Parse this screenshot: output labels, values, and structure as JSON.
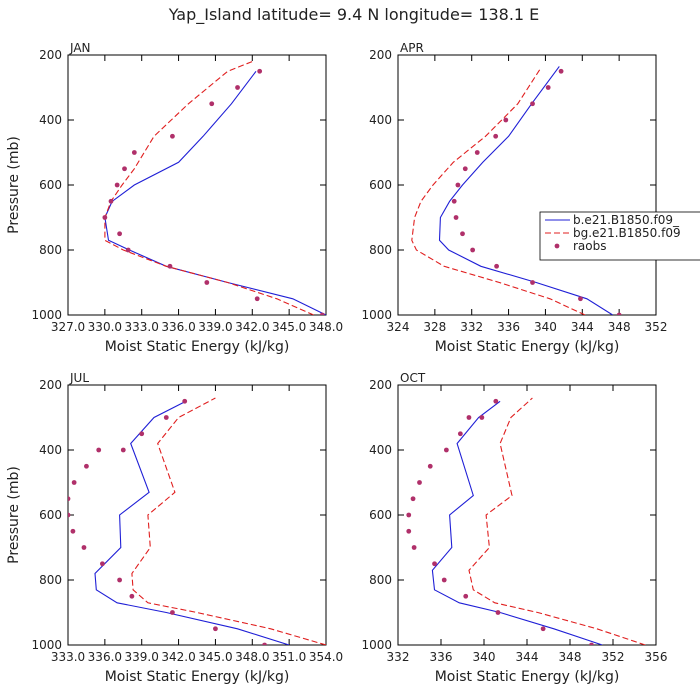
{
  "title": "Yap_Island  latitude= 9.4 N longitude= 138.1 E",
  "colors": {
    "model1": "#1f1fd6",
    "model2": "#e01f1f",
    "raobs": "#b0306a",
    "axis": "#000000"
  },
  "legend": {
    "entries": [
      "b.e21.B1850.f09_",
      "bg.e21.B1850.f09",
      "raobs"
    ]
  },
  "chart_data": [
    {
      "type": "line",
      "panel": "JAN",
      "xlabel": "Moist Static Energy (kJ/kg)",
      "ylabel": "Pressure (mb)",
      "xlim": [
        327.0,
        348.0
      ],
      "ylim": [
        1000,
        200
      ],
      "xticks": [
        327.0,
        330.0,
        333.0,
        336.0,
        339.0,
        342.0,
        345.0,
        348.0
      ],
      "xtick_labels": [
        "327.0",
        "330.0",
        "333.0",
        "336.0",
        "339.0",
        "342.0",
        "345.0",
        "348.0"
      ],
      "yticks": [
        200,
        400,
        600,
        800,
        1000
      ],
      "ytick_labels": [
        "200",
        "400",
        "600",
        "800",
        "1000"
      ],
      "series": [
        {
          "name": "b.e21.B1850.f09_",
          "style": "solid",
          "x": [
            348.0,
            345.3,
            340.0,
            335.0,
            332.0,
            330.3,
            330.0,
            330.6,
            332.4,
            336.0,
            338.0,
            340.3,
            342.3
          ],
          "y": [
            1000,
            950,
            900,
            850,
            800,
            770,
            700,
            650,
            600,
            530,
            450,
            350,
            250
          ]
        },
        {
          "name": "bg.e21.B1850.f09",
          "style": "dashed",
          "x": [
            347.0,
            344.0,
            340.0,
            335.0,
            331.5,
            330.0,
            330.0,
            330.5,
            331.4,
            332.4,
            334.0,
            336.8,
            340.0,
            342.0
          ],
          "y": [
            1000,
            950,
            900,
            850,
            800,
            770,
            700,
            650,
            600,
            550,
            450,
            350,
            250,
            220
          ]
        },
        {
          "name": "raobs",
          "style": "markers",
          "x": [
            347.7,
            342.4,
            338.3,
            335.3,
            331.9,
            331.2,
            330.0,
            330.5,
            331.0,
            331.6,
            332.4,
            335.5,
            338.7,
            340.8,
            342.6
          ],
          "y": [
            1000,
            950,
            900,
            850,
            800,
            750,
            700,
            650,
            600,
            550,
            500,
            450,
            350,
            300,
            250
          ]
        }
      ]
    },
    {
      "type": "line",
      "panel": "APR",
      "xlabel": "Moist Static Energy (kJ/kg)",
      "ylabel": "",
      "xlim": [
        324,
        352
      ],
      "ylim": [
        1000,
        200
      ],
      "xticks": [
        324,
        328,
        332,
        336,
        340,
        344,
        348,
        352
      ],
      "xtick_labels": [
        "324",
        "328",
        "332",
        "336",
        "340",
        "344",
        "348",
        "352"
      ],
      "yticks": [
        200,
        400,
        600,
        800,
        1000
      ],
      "ytick_labels": [
        "200",
        "400",
        "600",
        "800",
        "1000"
      ],
      "series": [
        {
          "name": "b.e21.B1850.f09_",
          "style": "solid",
          "x": [
            347.3,
            344.5,
            339.0,
            333.0,
            329.5,
            328.5,
            328.6,
            329.6,
            331.0,
            333.2,
            336.0,
            338.5,
            341.5
          ],
          "y": [
            1000,
            950,
            900,
            850,
            800,
            770,
            700,
            650,
            600,
            530,
            450,
            350,
            235
          ]
        },
        {
          "name": "bg.e21.B1850.f09",
          "style": "dashed",
          "x": [
            344.3,
            340.5,
            335.0,
            329.0,
            326.0,
            325.5,
            325.8,
            326.5,
            327.8,
            330.0,
            333.5,
            337.0,
            339.5
          ],
          "y": [
            1000,
            950,
            900,
            850,
            800,
            770,
            700,
            650,
            600,
            530,
            450,
            350,
            240
          ]
        },
        {
          "name": "raobs",
          "style": "markers",
          "x": [
            348.0,
            343.8,
            338.6,
            334.7,
            332.1,
            331.0,
            330.3,
            330.1,
            330.5,
            331.3,
            332.6,
            334.6,
            335.7,
            338.6,
            340.3,
            341.7
          ],
          "y": [
            1000,
            950,
            900,
            850,
            800,
            750,
            700,
            650,
            600,
            550,
            500,
            450,
            400,
            350,
            300,
            250
          ]
        }
      ]
    },
    {
      "type": "line",
      "panel": "JUL",
      "xlabel": "Moist Static Energy (kJ/kg)",
      "ylabel": "Pressure (mb)",
      "xlim": [
        333.0,
        354.0
      ],
      "ylim": [
        1000,
        200
      ],
      "xticks": [
        333.0,
        336.0,
        339.0,
        342.0,
        345.0,
        348.0,
        351.0,
        354.0
      ],
      "xtick_labels": [
        "333.0",
        "336.0",
        "339.0",
        "342.0",
        "345.0",
        "348.0",
        "351.0",
        "354.0"
      ],
      "yticks": [
        200,
        400,
        600,
        800,
        1000
      ],
      "ytick_labels": [
        "200",
        "400",
        "600",
        "800",
        "1000"
      ],
      "series": [
        {
          "name": "b.e21.B1850.f09_",
          "style": "solid",
          "x": [
            351.0,
            346.8,
            341.0,
            337.0,
            335.3,
            335.2,
            337.3,
            337.2,
            339.6,
            338.1,
            340.0,
            342.6
          ],
          "y": [
            1000,
            950,
            900,
            870,
            830,
            780,
            700,
            600,
            530,
            380,
            300,
            250
          ]
        },
        {
          "name": "bg.e21.B1850.f09",
          "style": "dashed",
          "x": [
            354.0,
            349.5,
            343.5,
            339.5,
            338.3,
            338.2,
            339.7,
            339.5,
            341.7,
            340.3,
            342.0,
            345.0
          ],
          "y": [
            1000,
            950,
            900,
            870,
            830,
            780,
            700,
            600,
            530,
            380,
            300,
            240
          ]
        },
        {
          "name": "raobs",
          "style": "markers",
          "x": [
            349.0,
            345.0,
            341.5,
            338.2,
            337.2,
            335.8,
            334.3,
            333.4,
            333.0,
            333.0,
            333.5,
            334.5,
            335.5,
            337.5,
            339.0,
            341.0,
            342.5
          ],
          "y": [
            1000,
            950,
            900,
            850,
            800,
            750,
            700,
            650,
            600,
            550,
            500,
            450,
            400,
            400,
            350,
            300,
            250
          ]
        }
      ]
    },
    {
      "type": "line",
      "panel": "OCT",
      "xlabel": "Moist Static Energy (kJ/kg)",
      "ylabel": "",
      "xlim": [
        332,
        356
      ],
      "ylim": [
        1000,
        200
      ],
      "xticks": [
        332,
        336,
        340,
        344,
        348,
        352,
        356
      ],
      "xtick_labels": [
        "332",
        "336",
        "340",
        "344",
        "348",
        "352",
        "356"
      ],
      "yticks": [
        200,
        400,
        600,
        800,
        1000
      ],
      "ytick_labels": [
        "200",
        "400",
        "600",
        "800",
        "1000"
      ],
      "series": [
        {
          "name": "b.e21.B1850.f09_",
          "style": "solid",
          "x": [
            351.0,
            346.5,
            341.5,
            337.7,
            335.4,
            335.2,
            337.0,
            336.8,
            339.0,
            337.5,
            339.5,
            341.5
          ],
          "y": [
            1000,
            950,
            900,
            870,
            830,
            770,
            700,
            600,
            540,
            380,
            300,
            250
          ]
        },
        {
          "name": "bg.e21.B1850.f09",
          "style": "dashed",
          "x": [
            355.0,
            350.5,
            345.0,
            341.0,
            339.0,
            338.6,
            340.5,
            340.2,
            342.6,
            341.5,
            342.5,
            344.5
          ],
          "y": [
            1000,
            950,
            900,
            870,
            830,
            770,
            700,
            600,
            540,
            380,
            300,
            240
          ]
        },
        {
          "name": "raobs",
          "style": "markers",
          "x": [
            350.0,
            345.5,
            341.3,
            338.3,
            336.3,
            335.4,
            333.5,
            333.0,
            333.0,
            333.4,
            334.0,
            335.0,
            336.5,
            337.8,
            338.6,
            339.8,
            341.1
          ],
          "y": [
            1000,
            950,
            900,
            850,
            800,
            750,
            700,
            650,
            600,
            550,
            500,
            450,
            400,
            350,
            300,
            300,
            250
          ]
        }
      ]
    }
  ]
}
